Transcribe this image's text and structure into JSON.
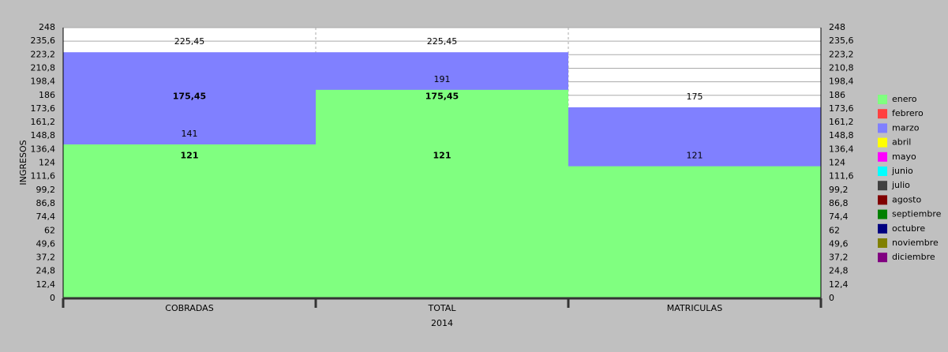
{
  "chart_data": {
    "type": "bar",
    "layout": "overlapped",
    "y_label": "INGRESOS",
    "x_label": "2014",
    "categories": [
      "COBRADAS",
      "TOTAL",
      "MATRICULAS"
    ],
    "series": [
      {
        "name": "enero",
        "color": "#80ff80",
        "values": [
          141,
          191,
          121
        ]
      },
      {
        "name": "febrero",
        "color": "#ff4040",
        "values": [
          null,
          null,
          null
        ]
      },
      {
        "name": "marzo",
        "color": "#8080ff",
        "values": [
          225.45,
          225.45,
          175
        ],
        "value_labels": [
          "225,45",
          "225,45",
          "175"
        ]
      },
      {
        "name": "abril",
        "color": "#ffff00",
        "values": [
          null,
          null,
          null
        ]
      },
      {
        "name": "mayo",
        "color": "#ff00ff",
        "values": [
          null,
          null,
          null
        ]
      },
      {
        "name": "junio",
        "color": "#00ffff",
        "values": [
          null,
          null,
          null
        ]
      },
      {
        "name": "julio",
        "color": "#404040",
        "values": [
          null,
          null,
          null
        ]
      },
      {
        "name": "agosto",
        "color": "#800000",
        "values": [
          null,
          null,
          null
        ]
      },
      {
        "name": "septiembre",
        "color": "#008000",
        "values": [
          null,
          null,
          null
        ]
      },
      {
        "name": "octubre",
        "color": "#000080",
        "values": [
          null,
          null,
          null
        ]
      },
      {
        "name": "noviembre",
        "color": "#808000",
        "values": [
          null,
          null,
          null
        ]
      },
      {
        "name": "diciembre",
        "color": "#800080",
        "values": [
          null,
          null,
          null
        ]
      }
    ],
    "annotations": [
      {
        "category": "COBRADAS",
        "value": 121,
        "label": "121"
      },
      {
        "category": "COBRADAS",
        "value": 175.45,
        "label": "175,45"
      },
      {
        "category": "TOTAL",
        "value": 121,
        "label": "121"
      },
      {
        "category": "TOTAL",
        "value": 175.45,
        "label": "175,45"
      }
    ],
    "ylim": [
      0,
      248
    ],
    "yticks": [
      0,
      {
        "value": 12.4,
        "label": "12,4"
      },
      {
        "value": 24.8,
        "label": "24,8"
      },
      {
        "value": 37.2,
        "label": "37,2"
      },
      {
        "value": 49.6,
        "label": "49,6"
      },
      62,
      {
        "value": 74.4,
        "label": "74,4"
      },
      {
        "value": 86.8,
        "label": "86,8"
      },
      {
        "value": 99.2,
        "label": "99,2"
      },
      {
        "value": 111.6,
        "label": "111,6"
      },
      124,
      {
        "value": 136.4,
        "label": "136,4"
      },
      {
        "value": 148.8,
        "label": "148,8"
      },
      {
        "value": 161.2,
        "label": "161,2"
      },
      {
        "value": 173.6,
        "label": "173,6"
      },
      186,
      {
        "value": 198.4,
        "label": "198,4"
      },
      {
        "value": 210.8,
        "label": "210,8"
      },
      {
        "value": 223.2,
        "label": "223,2"
      },
      {
        "value": 235.6,
        "label": "235,6"
      },
      248
    ],
    "grid": true,
    "legend": "right"
  }
}
